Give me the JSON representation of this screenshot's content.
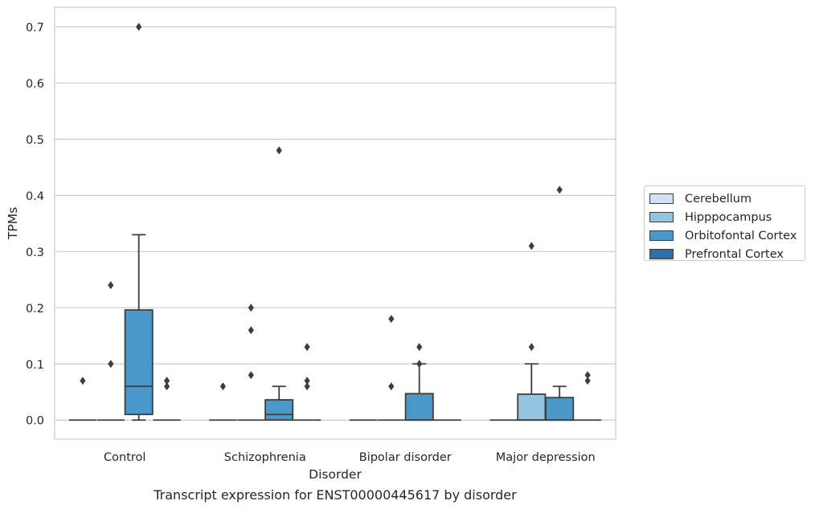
{
  "chart_data": {
    "type": "box",
    "title": "Transcript expression for ENST00000445617 by disorder",
    "xlabel": "Disorder",
    "ylabel": "TPMs",
    "ylim": [
      -0.034,
      0.735
    ],
    "yticks": [
      "0.0",
      "0.1",
      "0.2",
      "0.3",
      "0.4",
      "0.5",
      "0.6",
      "0.7"
    ],
    "grid": true,
    "legend_position": "right",
    "categories": [
      "Control",
      "Schizophrenia",
      "Bipolar disorder",
      "Major depression"
    ],
    "series": [
      {
        "name": "Cerebellum",
        "color": "#d0e1f2",
        "boxes": [
          {
            "q1": 0,
            "median": 0,
            "q3": 0,
            "whisker_low": 0,
            "whisker_high": 0,
            "outliers": [
              0.07
            ]
          },
          {
            "q1": 0,
            "median": 0,
            "q3": 0,
            "whisker_low": 0,
            "whisker_high": 0,
            "outliers": [
              0.06
            ]
          },
          {
            "q1": 0,
            "median": 0,
            "q3": 0,
            "whisker_low": 0,
            "whisker_high": 0,
            "outliers": []
          },
          {
            "q1": 0,
            "median": 0,
            "q3": 0,
            "whisker_low": 0,
            "whisker_high": 0,
            "outliers": []
          }
        ]
      },
      {
        "name": "Hipppocampus",
        "color": "#94c4df",
        "boxes": [
          {
            "q1": 0,
            "median": 0,
            "q3": 0,
            "whisker_low": 0,
            "whisker_high": 0,
            "outliers": [
              0.24,
              0.1
            ]
          },
          {
            "q1": 0,
            "median": 0,
            "q3": 0,
            "whisker_low": 0,
            "whisker_high": 0,
            "outliers": [
              0.2,
              0.16,
              0.08
            ]
          },
          {
            "q1": 0,
            "median": 0,
            "q3": 0,
            "whisker_low": 0,
            "whisker_high": 0,
            "outliers": [
              0.18,
              0.06
            ]
          },
          {
            "q1": 0,
            "median": 0,
            "q3": 0.046,
            "whisker_low": 0,
            "whisker_high": 0.1,
            "outliers": [
              0.31,
              0.13
            ]
          }
        ]
      },
      {
        "name": "Orbitofontal Cortex",
        "color": "#4a98c9",
        "boxes": [
          {
            "q1": 0.01,
            "median": 0.06,
            "q3": 0.196,
            "whisker_low": 0,
            "whisker_high": 0.33,
            "outliers": [
              0.7
            ]
          },
          {
            "q1": 0,
            "median": 0.01,
            "q3": 0.036,
            "whisker_low": 0,
            "whisker_high": 0.06,
            "outliers": [
              0.48
            ]
          },
          {
            "q1": 0,
            "median": 0,
            "q3": 0.047,
            "whisker_low": 0,
            "whisker_high": 0.1,
            "outliers": [
              0.13,
              0.1
            ]
          },
          {
            "q1": 0,
            "median": 0,
            "q3": 0.04,
            "whisker_low": 0,
            "whisker_high": 0.06,
            "outliers": [
              0.41
            ]
          }
        ]
      },
      {
        "name": "Prefrontal Cortex",
        "color": "#2e6fab",
        "boxes": [
          {
            "q1": 0,
            "median": 0,
            "q3": 0,
            "whisker_low": 0,
            "whisker_high": 0,
            "outliers": [
              0.07,
              0.06
            ]
          },
          {
            "q1": 0,
            "median": 0,
            "q3": 0,
            "whisker_low": 0,
            "whisker_high": 0,
            "outliers": [
              0.13,
              0.07,
              0.06
            ]
          },
          {
            "q1": 0,
            "median": 0,
            "q3": 0,
            "whisker_low": 0,
            "whisker_high": 0,
            "outliers": []
          },
          {
            "q1": 0,
            "median": 0,
            "q3": 0,
            "whisker_low": 0,
            "whisker_high": 0,
            "outliers": [
              0.08,
              0.07
            ]
          }
        ]
      }
    ]
  }
}
